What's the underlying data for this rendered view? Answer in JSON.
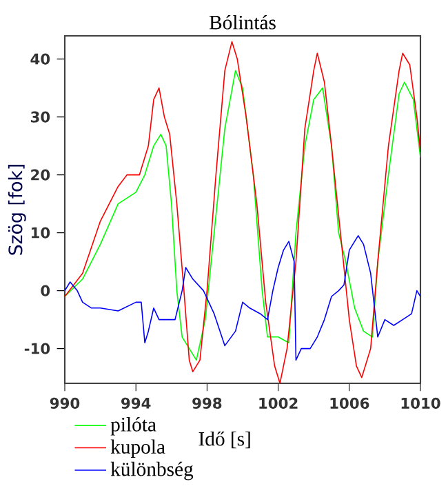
{
  "chart_data": {
    "type": "line",
    "title": "Bólintás",
    "xlabel": "Idő [s]",
    "ylabel": "Szög [fok]",
    "xlim": [
      990,
      1010
    ],
    "ylim": [
      -16,
      44
    ],
    "xticks": [
      990,
      994,
      998,
      1002,
      1006,
      1010
    ],
    "yticks": [
      -10,
      0,
      10,
      20,
      30,
      40
    ],
    "grid": false,
    "legend": "bottom",
    "marker": "none",
    "line_style": "solid",
    "series": [
      {
        "name": "pilóta",
        "color": "#00ff00",
        "x": [
          990,
          991,
          992,
          993,
          994,
          994.5,
          995,
          995.4,
          995.7,
          996,
          996.3,
          996.6,
          997,
          997.4,
          997.9,
          998.4,
          999,
          999.6,
          1000,
          1000.6,
          1001.1,
          1001.4,
          1002,
          1002.6,
          1003,
          1003.5,
          1004,
          1004.5,
          1005,
          1005.4,
          1005.8,
          1006.3,
          1006.8,
          1007.3,
          1007.6,
          1008.2,
          1008.8,
          1009.1,
          1009.6,
          1010
        ],
        "values": [
          -1,
          2,
          8,
          15,
          17,
          20,
          25,
          27,
          25,
          15,
          0,
          -8,
          -10,
          -12,
          -5,
          10,
          28,
          38,
          35,
          20,
          0,
          -8,
          -8,
          -9,
          10,
          25,
          33,
          35,
          25,
          10,
          5,
          -3,
          -7,
          -8,
          5,
          20,
          34,
          36,
          33,
          23
        ]
      },
      {
        "name": "kupola",
        "color": "#ff0000",
        "x": [
          990,
          991,
          992,
          993,
          993.5,
          994.2,
          994.7,
          995,
          995.3,
          995.6,
          995.9,
          996.3,
          996.7,
          997,
          997.2,
          997.6,
          998,
          998.5,
          999,
          999.4,
          999.7,
          1000.2,
          1000.8,
          1001.3,
          1001.8,
          1002.1,
          1002.5,
          1003,
          1003.5,
          1004,
          1004.2,
          1004.6,
          1005,
          1005.5,
          1006,
          1006.4,
          1006.7,
          1007.2,
          1007.6,
          1008.2,
          1008.8,
          1009,
          1009.4,
          1009.8,
          1010
        ],
        "values": [
          -1,
          3,
          12,
          18,
          20,
          20,
          25,
          33,
          35,
          30,
          27,
          15,
          0,
          -12,
          -14,
          -12,
          0,
          20,
          38,
          43,
          40,
          30,
          15,
          -2,
          -13,
          -16,
          -10,
          5,
          28,
          38,
          41,
          36,
          25,
          10,
          -5,
          -13,
          -15,
          -10,
          5,
          25,
          38,
          41,
          39,
          30,
          24
        ]
      },
      {
        "name": "különbség",
        "color": "#0000ff",
        "x": [
          990,
          990.3,
          990.7,
          991,
          991.5,
          992,
          993,
          994,
          994.3,
          994.5,
          994.7,
          995,
          995.3,
          995.8,
          996.2,
          996.6,
          996.8,
          997.2,
          997.8,
          998.4,
          999,
          999.6,
          1000,
          1000.4,
          1001,
          1001.4,
          1001.7,
          1002,
          1002.3,
          1002.6,
          1002.9,
          1003,
          1003.3,
          1003.8,
          1004.2,
          1004.6,
          1005,
          1005.4,
          1005.7,
          1006,
          1006.5,
          1006.8,
          1007.2,
          1007.6,
          1008,
          1008.5,
          1009,
          1009.5,
          1009.8,
          1010
        ],
        "values": [
          0,
          1.5,
          0,
          -2,
          -3,
          -3,
          -3.5,
          -2,
          -2,
          -9,
          -7,
          -3,
          -5,
          -5,
          -5,
          0,
          4,
          2,
          0,
          -4,
          -9.5,
          -7,
          -2,
          -3,
          -4,
          -5,
          0,
          4,
          7,
          8.5,
          5,
          -12,
          -10,
          -10,
          -8,
          -5,
          -1,
          0,
          1,
          7,
          9.5,
          8,
          3,
          -8,
          -5,
          -6,
          -5,
          -4,
          0,
          -1
        ]
      }
    ]
  }
}
